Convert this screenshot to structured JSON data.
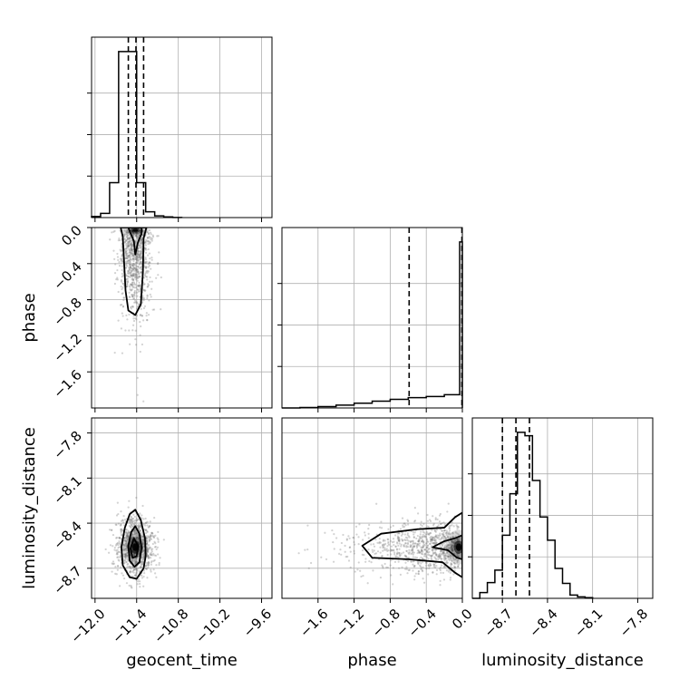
{
  "chart_data": {
    "type": "corner",
    "grid": true,
    "parameters": [
      "geocent_time",
      "phase",
      "luminosity_distance"
    ],
    "colors": {
      "line": "#000000",
      "grid": "#b0b0b0",
      "points": "#7f7f7f"
    },
    "axes": {
      "geocent_time": {
        "label": "geocent_time",
        "range": [
          -12.05,
          -9.45
        ],
        "ticks": [
          -12.0,
          -11.4,
          -10.8,
          -10.2,
          -9.6
        ],
        "tick_labels": [
          "−12.0",
          "−11.4",
          "−10.8",
          "−10.2",
          "−9.6"
        ]
      },
      "phase": {
        "label": "phase",
        "range": [
          -2.0,
          0.0
        ],
        "ticks": [
          -1.6,
          -1.2,
          -0.8,
          -0.4,
          0.0
        ],
        "tick_labels": [
          "−1.6",
          "−1.2",
          "−0.8",
          "−0.4",
          "0.0"
        ]
      },
      "luminosity_distance": {
        "label": "luminosity_distance",
        "range": [
          -8.9,
          -7.7
        ],
        "ticks": [
          -8.7,
          -8.4,
          -8.1,
          -7.8
        ],
        "tick_labels": [
          "−8.7",
          "−8.4",
          "−8.1",
          "−7.8"
        ]
      }
    },
    "histograms": [
      {
        "param": "geocent_time",
        "bin_edges": [
          -12.05,
          -11.92,
          -11.79,
          -11.66,
          -11.53,
          -11.4,
          -11.27,
          -11.14,
          -11.01,
          -10.88,
          -10.75
        ],
        "counts": [
          0.7,
          2.5,
          21,
          100,
          100,
          21,
          3.5,
          1.0,
          0.4,
          0.1
        ],
        "quantiles": [
          -11.52,
          -11.41,
          -11.3
        ]
      },
      {
        "param": "phase",
        "bin_edges": [
          -2.0,
          -1.8,
          -1.6,
          -1.4,
          -1.2,
          -1.0,
          -0.8,
          -0.6,
          -0.4,
          -0.2,
          -0.03,
          0.0
        ],
        "counts": [
          0.0,
          0.3,
          0.8,
          1.7,
          2.9,
          4.1,
          5.2,
          6.2,
          6.9,
          8.0,
          100
        ],
        "quantiles": [
          -0.59,
          -0.005
        ]
      },
      {
        "param": "luminosity_distance",
        "bin_edges": [
          -8.9,
          -8.85,
          -8.8,
          -8.75,
          -8.7,
          -8.65,
          -8.6,
          -8.55,
          -8.5,
          -8.45,
          -8.4,
          -8.35,
          -8.3,
          -8.25,
          -8.2,
          -8.15,
          -8.1
        ],
        "counts": [
          0.0,
          3.5,
          9.5,
          17,
          38,
          63,
          100,
          98,
          71,
          49,
          35,
          18,
          9,
          2,
          0.9,
          0.4
        ],
        "quantiles": [
          -8.7,
          -8.61,
          -8.52
        ]
      }
    ],
    "scatter_panels": [
      {
        "x": "geocent_time",
        "y": "phase",
        "density_center": {
          "geocent_time": -11.42,
          "phase": -0.03
        },
        "contour_levels": [
          [
            [
              -11.63,
              0.0
            ],
            [
              -11.6,
              -0.1
            ],
            [
              -11.58,
              -0.4
            ],
            [
              -11.56,
              -0.7
            ],
            [
              -11.52,
              -0.92
            ],
            [
              -11.42,
              -0.97
            ],
            [
              -11.34,
              -0.85
            ],
            [
              -11.31,
              -0.5
            ],
            [
              -11.3,
              -0.12
            ],
            [
              -11.26,
              0.0
            ]
          ],
          [
            [
              -11.52,
              0.0
            ],
            [
              -11.49,
              -0.06
            ],
            [
              -11.44,
              -0.15
            ],
            [
              -11.42,
              -0.3
            ],
            [
              -11.38,
              -0.16
            ],
            [
              -11.33,
              -0.07
            ],
            [
              -11.33,
              0.0
            ]
          ]
        ]
      },
      {
        "x": "geocent_time",
        "y": "luminosity_distance",
        "density_center": {
          "geocent_time": -11.42,
          "luminosity_distance": -8.56
        },
        "contour_levels": [
          [
            [
              -11.42,
              -8.31
            ],
            [
              -11.34,
              -8.38
            ],
            [
              -11.28,
              -8.5
            ],
            [
              -11.27,
              -8.62
            ],
            [
              -11.3,
              -8.7
            ],
            [
              -11.4,
              -8.77
            ],
            [
              -11.5,
              -8.76
            ],
            [
              -11.6,
              -8.68
            ],
            [
              -11.62,
              -8.56
            ],
            [
              -11.57,
              -8.43
            ],
            [
              -11.5,
              -8.34
            ]
          ],
          [
            [
              -11.42,
              -8.42
            ],
            [
              -11.36,
              -8.47
            ],
            [
              -11.33,
              -8.56
            ],
            [
              -11.36,
              -8.66
            ],
            [
              -11.43,
              -8.69
            ],
            [
              -11.5,
              -8.65
            ],
            [
              -11.52,
              -8.55
            ],
            [
              -11.48,
              -8.46
            ]
          ],
          [
            [
              -11.44,
              -8.5
            ],
            [
              -11.38,
              -8.55
            ],
            [
              -11.4,
              -8.62
            ],
            [
              -11.46,
              -8.63
            ],
            [
              -11.49,
              -8.57
            ]
          ]
        ]
      },
      {
        "x": "phase",
        "y": "luminosity_distance",
        "density_center": {
          "phase": -0.04,
          "luminosity_distance": -8.56
        },
        "contour_levels": [
          [
            [
              0.0,
              -8.33
            ],
            [
              -0.08,
              -8.36
            ],
            [
              -0.2,
              -8.43
            ],
            [
              -0.5,
              -8.44
            ],
            [
              -0.9,
              -8.47
            ],
            [
              -1.11,
              -8.55
            ],
            [
              -1.0,
              -8.63
            ],
            [
              -0.6,
              -8.64
            ],
            [
              -0.22,
              -8.66
            ],
            [
              -0.08,
              -8.73
            ],
            [
              0.0,
              -8.76
            ]
          ],
          [
            [
              0.0,
              -8.48
            ],
            [
              -0.08,
              -8.5
            ],
            [
              -0.2,
              -8.52
            ],
            [
              -0.33,
              -8.56
            ],
            [
              -0.16,
              -8.58
            ],
            [
              -0.06,
              -8.63
            ],
            [
              0.0,
              -8.64
            ]
          ]
        ]
      }
    ]
  }
}
